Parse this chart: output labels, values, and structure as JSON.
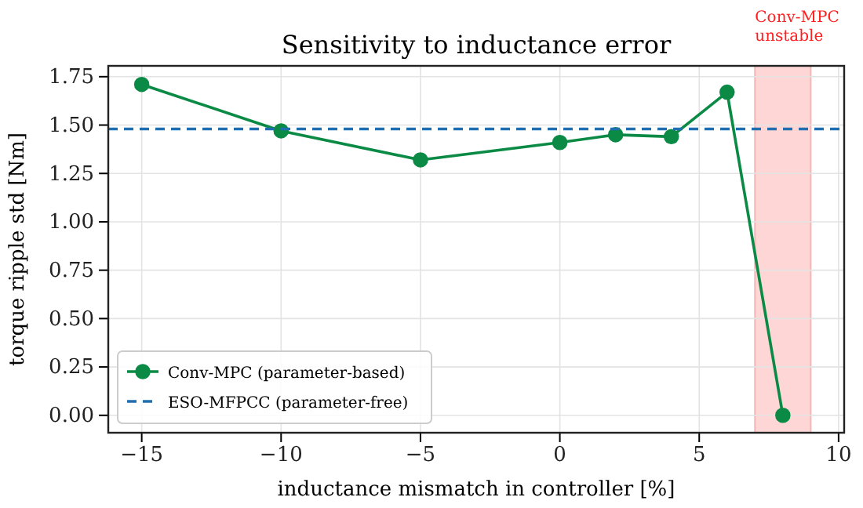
{
  "chart_data": {
    "type": "line",
    "title": "Sensitivity to inductance error",
    "xlabel": "inductance mismatch in controller [%]",
    "ylabel": "torque ripple std [Nm]",
    "x": [
      -15,
      -10,
      -5,
      0,
      2,
      4,
      6,
      8
    ],
    "series": [
      {
        "name": "Conv-MPC (parameter-based)",
        "color": "#0a8a45",
        "values": [
          1.71,
          1.47,
          1.32,
          1.41,
          1.45,
          1.44,
          1.67,
          0.0
        ],
        "marker": "circle",
        "line_style": "solid"
      },
      {
        "name": "ESO-MFPCC (parameter-free)",
        "color": "#1f6fb0",
        "x": [
          -16.2,
          10.2
        ],
        "values": [
          1.48,
          1.48
        ],
        "marker": "none",
        "line_style": "dashed"
      }
    ],
    "bands": [
      {
        "axis": "x",
        "from": 7,
        "to": 9,
        "color": "#ffd6d6"
      }
    ],
    "annotations": [
      "Conv-MPC unstable"
    ],
    "xlim": [
      -16.2,
      10.2
    ],
    "xticks": [
      {
        "value": -15,
        "label": "−15"
      },
      {
        "value": -10,
        "label": "−10"
      },
      {
        "value": -5,
        "label": "−5"
      },
      0,
      5,
      10
    ],
    "ylim": [
      -0.09,
      1.806
    ],
    "yticks": [
      {
        "value": 0,
        "label": "0.00"
      },
      {
        "value": 0.25,
        "label": "0.25"
      },
      {
        "value": 0.5,
        "label": "0.50"
      },
      {
        "value": 0.75,
        "label": "0.75"
      },
      {
        "value": 1,
        "label": "1.00"
      },
      {
        "value": 1.25,
        "label": "1.25"
      },
      {
        "value": 1.5,
        "label": "1.50"
      },
      {
        "value": 1.75,
        "label": "1.75"
      }
    ],
    "grid": true,
    "legend": "bottom left"
  }
}
